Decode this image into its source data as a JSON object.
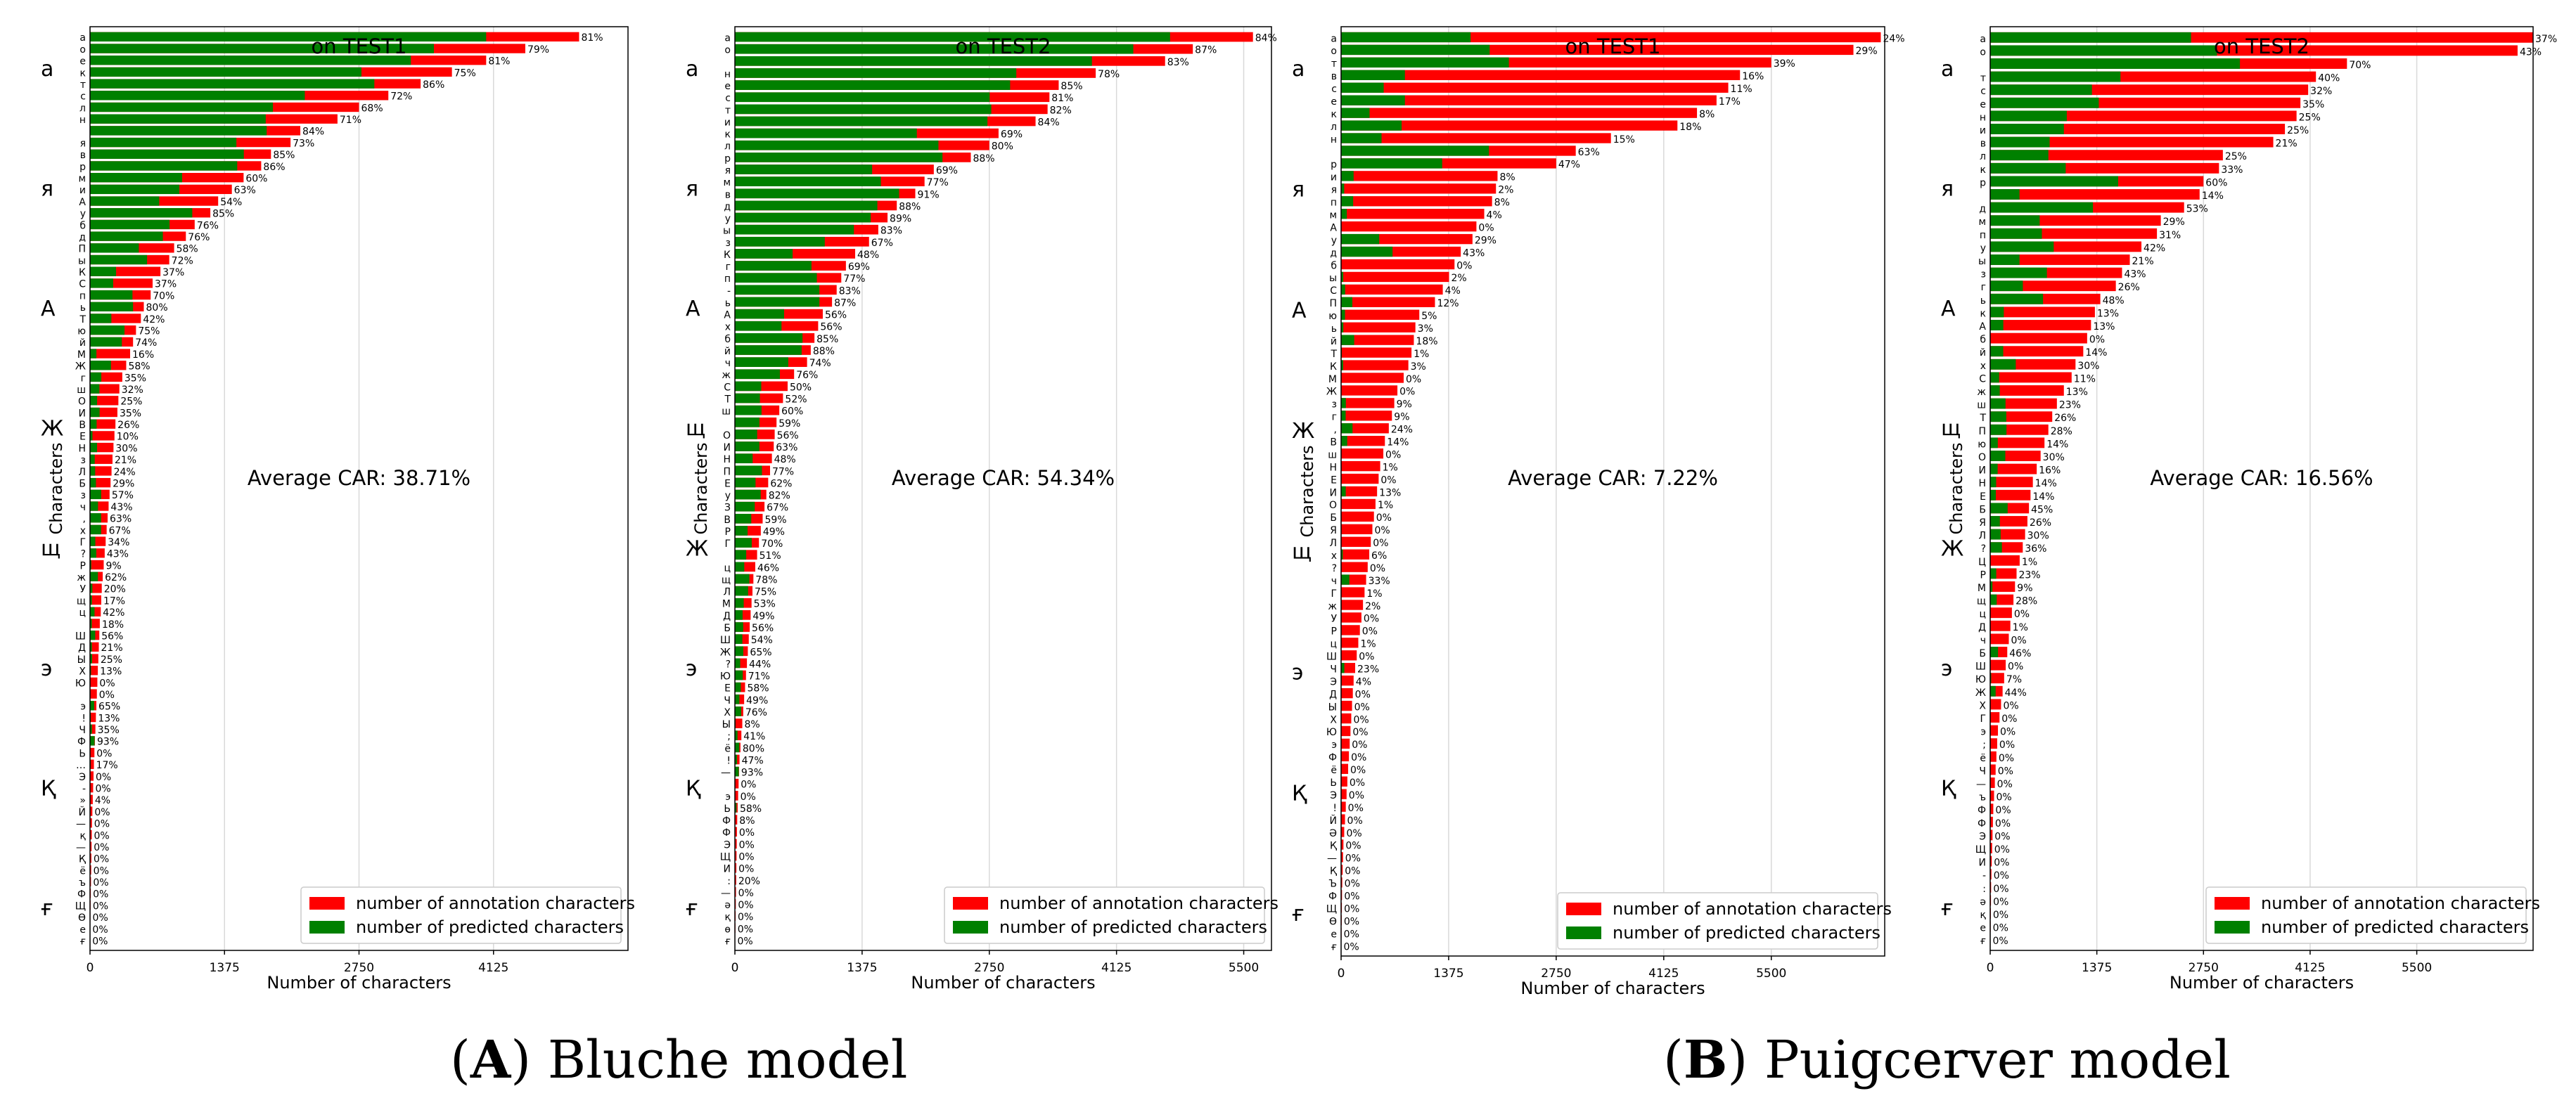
{
  "captions": {
    "a": {
      "letter": "A",
      "text": "Bluche model"
    },
    "b": {
      "letter": "B",
      "text": "Puigcerver model"
    }
  },
  "colors": {
    "annotation": "#ff0000",
    "predicted": "#008000"
  },
  "chart_data": [
    {
      "type": "bar",
      "orientation": "horizontal",
      "title": "on TEST1",
      "xlabel": "Number of characters",
      "ylabel": "Characters",
      "xlim": [
        0,
        5500
      ],
      "xticks": [
        0,
        1375,
        2750,
        4125
      ],
      "grid": "vertical",
      "legend_position": "bottom-right",
      "average_label": "Average CAR: 38.71%",
      "tick_labels_big": [
        "а",
        "я",
        "А",
        "Ж",
        "щ",
        "э",
        "Қ",
        "ғ"
      ],
      "series": [
        {
          "name": "number of annotation characters"
        },
        {
          "name": "number of predicted characters"
        }
      ],
      "categories": [
        "а",
        "о",
        "е",
        "к",
        "т",
        "с",
        "л",
        "н",
        "",
        "я",
        "в",
        "р",
        "м",
        "и",
        "А",
        "у",
        "б",
        "д",
        "П",
        "ы",
        "К",
        "С",
        "п",
        "ь",
        "Т",
        "ю",
        "й",
        "М",
        "Ж",
        "г",
        "ш",
        "О",
        "И",
        "В",
        "Е",
        "Н",
        "з",
        "Л",
        "Б",
        "з",
        "ч",
        ",",
        "х",
        "Г",
        "?",
        "Р",
        "ж",
        "У",
        "щ",
        "ц",
        "",
        "Ш",
        "Д",
        "Ы",
        "Х",
        "Ю",
        "",
        "э",
        "!",
        "Ч",
        "Ф",
        "Ь",
        "…",
        "Э",
        "-",
        "»",
        "Й",
        "—",
        "қ",
        "—",
        "Қ",
        "ё",
        "ъ",
        "Ф",
        "Щ",
        "Ө",
        "е",
        "ғ"
      ],
      "annotation": [
        5000,
        4450,
        4050,
        3700,
        3380,
        3050,
        2750,
        2530,
        2150,
        2050,
        1850,
        1750,
        1570,
        1450,
        1310,
        1230,
        1070,
        980,
        860,
        810,
        720,
        640,
        620,
        550,
        520,
        470,
        440,
        410,
        370,
        330,
        300,
        290,
        280,
        260,
        250,
        240,
        230,
        220,
        210,
        200,
        190,
        180,
        170,
        160,
        150,
        140,
        130,
        120,
        115,
        110,
        100,
        95,
        90,
        85,
        80,
        75,
        70,
        65,
        60,
        55,
        50,
        45,
        40,
        36,
        32,
        28,
        24,
        20,
        18,
        16,
        14,
        12,
        10,
        8,
        6,
        4,
        3,
        2
      ],
      "car": [
        81,
        79,
        81,
        75,
        86,
        72,
        68,
        71,
        84,
        73,
        85,
        86,
        60,
        63,
        54,
        85,
        76,
        76,
        58,
        72,
        37,
        37,
        70,
        80,
        42,
        75,
        74,
        16,
        58,
        35,
        32,
        25,
        35,
        26,
        10,
        30,
        21,
        24,
        29,
        57,
        43,
        63,
        67,
        34,
        43,
        9,
        62,
        20,
        17,
        42,
        18,
        56,
        21,
        25,
        13,
        0,
        0,
        65,
        13,
        35,
        93,
        0,
        17,
        0,
        0,
        4,
        0,
        0,
        0,
        0,
        0,
        0,
        0,
        0,
        0,
        0,
        0,
        0
      ],
      "car_labels": [
        "81%",
        "79%",
        "81%",
        "75%",
        "86%",
        "72%",
        "68%",
        "71%",
        "84%",
        "73%",
        "85%",
        "86%",
        "60%",
        "63%",
        "54%",
        "85%",
        "76%",
        "76%",
        "58%",
        "72%",
        "37%",
        "37%",
        "70%",
        "80%",
        "42%",
        "75%",
        "74%",
        "16%",
        "58%",
        "35%",
        "32%",
        "25%",
        "35%",
        "26%",
        "10%",
        "30%",
        "21%",
        "24%",
        "29%",
        "57%",
        "43%",
        "63%",
        "67%",
        "34%",
        "43%",
        "9%",
        "62%",
        "20%",
        "17%",
        "42%",
        "18%",
        "56%",
        "21%",
        "25%",
        "13%",
        "0%",
        "0%",
        "65%",
        "13%",
        "35%",
        "93%",
        "0%",
        "17%",
        "0%",
        "0%",
        "4%",
        "0%",
        "0%",
        "0%",
        "0%",
        "0%",
        "0%",
        "0%",
        "0%",
        "0%",
        "0%",
        "0%",
        "0%"
      ]
    },
    {
      "type": "bar",
      "orientation": "horizontal",
      "title": "on TEST2",
      "xlabel": "Number of characters",
      "ylabel": "Characters",
      "xlim": [
        0,
        5800
      ],
      "xticks": [
        0,
        1375,
        2750,
        4125,
        5500
      ],
      "grid": "vertical",
      "legend_position": "bottom-right",
      "average_label": "Average CAR: 54.34%",
      "tick_labels_big": [
        "а",
        "я",
        "А",
        "щ",
        "Ж",
        "э",
        "Қ",
        "ғ"
      ],
      "series": [
        {
          "name": "number of annotation characters"
        },
        {
          "name": "number of predicted characters"
        }
      ],
      "categories": [
        "а",
        "о",
        "",
        "н",
        "е",
        "с",
        "т",
        "и",
        "к",
        "л",
        "р",
        "я",
        "м",
        "в",
        "д",
        "у",
        "ы",
        "з",
        "К",
        "г",
        "п",
        "-",
        "ь",
        "А",
        "х",
        "б",
        "й",
        "ч",
        "ж",
        "С",
        "Т",
        "ш",
        "",
        "О",
        "И",
        "Н",
        "П",
        "Е",
        "у",
        "З",
        "В",
        "Р",
        "Г",
        "",
        "ц",
        "щ",
        "Л",
        "М",
        "Д",
        "Б",
        "Ш",
        "Ж",
        "?",
        "Ю",
        "Е",
        "Ч",
        "Х",
        "Ы",
        ";",
        "ё",
        "!",
        "—",
        "",
        "э",
        "Ь",
        "Ф",
        "Ф",
        "Э",
        "Щ",
        "И",
        ":",
        "—",
        "ә",
        "қ",
        "ө",
        "ғ"
      ],
      "annotation": [
        5600,
        4950,
        4650,
        3900,
        3500,
        3400,
        3380,
        3250,
        2850,
        2750,
        2550,
        2150,
        2050,
        1950,
        1750,
        1650,
        1550,
        1450,
        1300,
        1200,
        1150,
        1100,
        1050,
        950,
        900,
        860,
        820,
        780,
        640,
        570,
        520,
        480,
        450,
        430,
        420,
        400,
        380,
        360,
        340,
        320,
        300,
        280,
        260,
        240,
        220,
        200,
        190,
        180,
        170,
        160,
        150,
        140,
        130,
        120,
        110,
        100,
        90,
        80,
        70,
        60,
        50,
        45,
        40,
        35,
        30,
        25,
        22,
        20,
        18,
        16,
        14,
        12,
        10,
        8,
        6,
        4
      ],
      "car": [
        84,
        87,
        83,
        78,
        85,
        81,
        82,
        84,
        69,
        80,
        88,
        69,
        77,
        91,
        88,
        89,
        83,
        67,
        48,
        69,
        77,
        83,
        87,
        56,
        56,
        85,
        88,
        74,
        76,
        50,
        52,
        60,
        59,
        56,
        63,
        48,
        77,
        62,
        82,
        67,
        59,
        49,
        70,
        51,
        46,
        78,
        75,
        53,
        49,
        56,
        54,
        65,
        44,
        71,
        58,
        49,
        76,
        8,
        41,
        80,
        47,
        93,
        0,
        0,
        58,
        8,
        0,
        0,
        0,
        0,
        20,
        0,
        0,
        0,
        0,
        0
      ],
      "car_labels": [
        "84%",
        "87%",
        "83%",
        "78%",
        "85%",
        "81%",
        "82%",
        "84%",
        "69%",
        "80%",
        "88%",
        "69%",
        "77%",
        "91%",
        "88%",
        "89%",
        "83%",
        "67%",
        "48%",
        "69%",
        "77%",
        "83%",
        "87%",
        "56%",
        "56%",
        "85%",
        "88%",
        "74%",
        "76%",
        "50%",
        "52%",
        "60%",
        "59%",
        "56%",
        "63%",
        "48%",
        "77%",
        "62%",
        "82%",
        "67%",
        "59%",
        "49%",
        "70%",
        "51%",
        "46%",
        "78%",
        "75%",
        "53%",
        "49%",
        "56%",
        "54%",
        "65%",
        "44%",
        "71%",
        "58%",
        "49%",
        "76%",
        "8%",
        "41%",
        "80%",
        "47%",
        "93%",
        "0%",
        "0%",
        "58%",
        "8%",
        "0%",
        "0%",
        "0%",
        "0%",
        "20%",
        "0%",
        "0%",
        "0%",
        "0%",
        "0%"
      ]
    },
    {
      "type": "bar",
      "orientation": "horizontal",
      "title": "on TEST1",
      "xlabel": "Number of characters",
      "ylabel": "Characters",
      "xlim": [
        0,
        6950
      ],
      "xticks": [
        0,
        1375,
        2750,
        4125,
        5500
      ],
      "grid": "vertical",
      "legend_position": "bottom-right",
      "average_label": "Average CAR: 7.22%",
      "tick_labels_big": [
        "а",
        "я",
        "А",
        "Ж",
        "щ",
        "э",
        "Қ",
        "ғ"
      ],
      "series": [
        {
          "name": "number of annotation characters"
        },
        {
          "name": "number of predicted characters"
        }
      ],
      "categories": [
        "а",
        "о",
        "т",
        "в",
        "с",
        "е",
        "к",
        "л",
        "н",
        "",
        "р",
        "и",
        "я",
        "п",
        "м",
        "А",
        "у",
        "д",
        "б",
        "ы",
        "С",
        "П",
        "ю",
        "ь",
        "й",
        "Т",
        "К",
        "М",
        "Ж",
        "з",
        "г",
        ",",
        "В",
        "ш",
        "Н",
        "Е",
        "И",
        "О",
        "Б",
        "Я",
        "Л",
        "х",
        "?",
        "ч",
        "Г",
        "ж",
        "У",
        "Р",
        "ц",
        "Ш",
        "Ч",
        "Э",
        "Д",
        "Ы",
        "Х",
        "Ю",
        "э",
        "Ф",
        "ё",
        "Ь",
        "Э",
        "!",
        "Й",
        "Ә",
        "Қ",
        "—",
        "Қ",
        "Ъ",
        "Ф",
        "Щ",
        "Ө",
        "е",
        "ғ"
      ],
      "annotation": [
        6900,
        6550,
        5500,
        5100,
        4950,
        4800,
        4550,
        4300,
        3450,
        3000,
        2750,
        2000,
        1980,
        1930,
        1830,
        1730,
        1680,
        1530,
        1450,
        1380,
        1300,
        1200,
        1000,
        950,
        930,
        900,
        860,
        800,
        720,
        680,
        650,
        610,
        560,
        540,
        500,
        480,
        460,
        440,
        420,
        400,
        380,
        360,
        340,
        320,
        300,
        280,
        260,
        240,
        220,
        200,
        180,
        160,
        150,
        140,
        130,
        120,
        110,
        100,
        90,
        80,
        70,
        60,
        50,
        40,
        30,
        25,
        20,
        15,
        12,
        10,
        8,
        6,
        4
      ],
      "car": [
        24,
        29,
        39,
        16,
        11,
        17,
        8,
        18,
        15,
        63,
        47,
        8,
        2,
        8,
        4,
        0,
        29,
        43,
        0,
        2,
        4,
        12,
        5,
        3,
        18,
        1,
        3,
        0,
        0,
        9,
        9,
        24,
        14,
        0,
        1,
        0,
        13,
        1,
        0,
        0,
        0,
        6,
        0,
        33,
        1,
        2,
        0,
        0,
        1,
        0,
        23,
        4,
        0,
        0,
        0,
        0,
        0,
        0,
        0,
        0,
        0,
        0,
        0,
        0,
        0,
        0,
        0,
        0,
        0,
        0,
        0,
        0,
        0
      ],
      "car_labels": [
        "24%",
        "29%",
        "39%",
        "16%",
        "11%",
        "17%",
        "8%",
        "18%",
        "15%",
        "63%",
        "47%",
        "8%",
        "2%",
        "8%",
        "4%",
        "0%",
        "29%",
        "43%",
        "0%",
        "2%",
        "4%",
        "12%",
        "5%",
        "3%",
        "18%",
        "1%",
        "3%",
        "0%",
        "0%",
        "9%",
        "9%",
        "24%",
        "14%",
        "0%",
        "1%",
        "0%",
        "13%",
        "1%",
        "0%",
        "0%",
        "0%",
        "6%",
        "0%",
        "33%",
        "1%",
        "2%",
        "0%",
        "0%",
        "1%",
        "0%",
        "23%",
        "4%",
        "0%",
        "0%",
        "0%",
        "0%",
        "0%",
        "0%",
        "0%",
        "0%",
        "0%",
        "0%",
        "0%",
        "0%",
        "0%",
        "0%",
        "0%",
        "0%",
        "0%",
        "0%",
        "0%",
        "0%",
        "0%"
      ]
    },
    {
      "type": "bar",
      "orientation": "horizontal",
      "title": "on TEST2",
      "xlabel": "Number of characters",
      "ylabel": "Characters",
      "xlim": [
        0,
        7000
      ],
      "xticks": [
        0,
        1375,
        2750,
        4125,
        5500
      ],
      "grid": "vertical",
      "legend_position": "bottom-right",
      "average_label": "Average CAR: 16.56%",
      "tick_labels_big": [
        "а",
        "я",
        "А",
        "щ",
        "Ж",
        "э",
        "Қ",
        "ғ"
      ],
      "series": [
        {
          "name": "number of annotation characters"
        },
        {
          "name": "number of predicted characters"
        }
      ],
      "categories": [
        "а",
        "о",
        "",
        "т",
        "с",
        "е",
        "н",
        "и",
        "в",
        "л",
        "к",
        "р",
        "",
        "д",
        "м",
        "п",
        "у",
        "ы",
        "з",
        "г",
        "ь",
        "к",
        "А",
        "б",
        "й",
        "х",
        "С",
        "ж",
        "ш",
        "Т",
        "П",
        "ю",
        "О",
        "И",
        "Н",
        "Е",
        "Б",
        "Я",
        "Л",
        "?",
        "Ц",
        "Р",
        "М",
        "щ",
        "ц",
        "Д",
        "ч",
        "Б",
        "Ш",
        "Ю",
        "Ж",
        "Х",
        "Г",
        "э",
        ";",
        "ё",
        "Ч",
        "—",
        "ъ",
        "Ф",
        "Ф",
        "Э",
        "Щ",
        "И",
        "-",
        ":",
        "ә",
        "қ",
        "е",
        "ғ"
      ],
      "annotation": [
        7000,
        6800,
        4600,
        4200,
        4100,
        4000,
        3950,
        3800,
        3650,
        3000,
        2950,
        2750,
        2700,
        2500,
        2200,
        2150,
        1950,
        1800,
        1700,
        1620,
        1420,
        1350,
        1300,
        1250,
        1200,
        1100,
        1050,
        950,
        860,
        800,
        750,
        700,
        650,
        600,
        550,
        520,
        500,
        480,
        450,
        420,
        380,
        340,
        320,
        300,
        280,
        260,
        240,
        220,
        200,
        180,
        160,
        140,
        120,
        100,
        90,
        80,
        70,
        60,
        50,
        40,
        35,
        30,
        25,
        20,
        16,
        12,
        10,
        8,
        6,
        4
      ],
      "car": [
        37,
        43,
        70,
        40,
        32,
        35,
        25,
        25,
        21,
        25,
        33,
        60,
        14,
        53,
        29,
        31,
        42,
        21,
        43,
        26,
        48,
        13,
        13,
        0,
        14,
        30,
        11,
        13,
        23,
        26,
        28,
        14,
        30,
        16,
        14,
        14,
        45,
        26,
        30,
        36,
        1,
        23,
        9,
        28,
        0,
        1,
        0,
        46,
        0,
        7,
        44,
        0,
        0,
        0,
        0,
        0,
        0,
        0,
        0,
        0,
        0,
        0,
        0,
        0,
        0,
        0,
        0,
        0,
        0,
        0
      ],
      "car_labels": [
        "37%",
        "43%",
        "70%",
        "40%",
        "32%",
        "35%",
        "25%",
        "25%",
        "21%",
        "25%",
        "33%",
        "60%",
        "14%",
        "53%",
        "29%",
        "31%",
        "42%",
        "21%",
        "43%",
        "26%",
        "48%",
        "13%",
        "13%",
        "0%",
        "14%",
        "30%",
        "11%",
        "13%",
        "23%",
        "26%",
        "28%",
        "14%",
        "30%",
        "16%",
        "14%",
        "14%",
        "45%",
        "26%",
        "30%",
        "36%",
        "1%",
        "23%",
        "9%",
        "28%",
        "0%",
        "1%",
        "0%",
        "46%",
        "0%",
        "7%",
        "44%",
        "0%",
        "0%",
        "0%",
        "0%",
        "0%",
        "0%",
        "0%",
        "0%",
        "0%",
        "0%",
        "0%",
        "0%",
        "0%",
        "0%",
        "0%",
        "0%",
        "0%",
        "0%",
        "0%"
      ]
    }
  ]
}
